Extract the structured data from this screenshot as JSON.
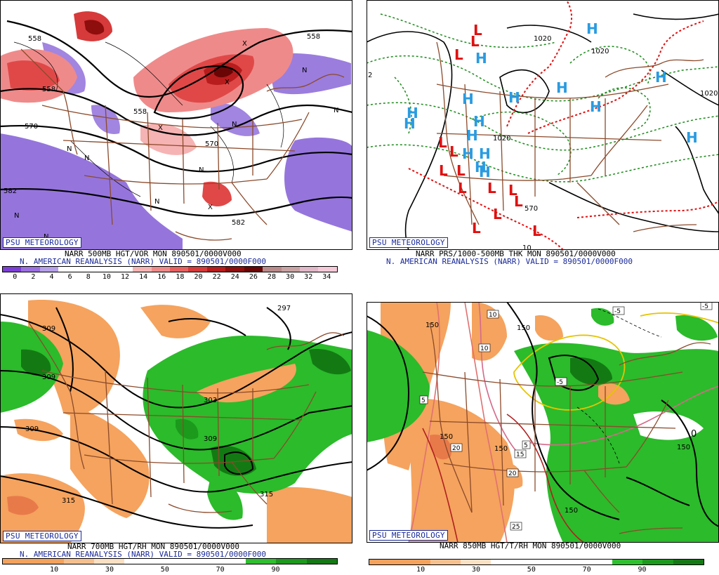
{
  "panels": [
    {
      "id": "p1",
      "logo": "PSU METEOROLOGY",
      "caption_line1": "NARR 500MB HGT/VOR MON 890501/0000V000",
      "caption_line2": "N. AMERICAN REANALYSIS (NARR) VALID = 890501/0000F000",
      "colorbar_labels": [
        "0",
        "2",
        "4",
        "6",
        "8",
        "10",
        "12",
        "14",
        "16",
        "18",
        "20",
        "22",
        "24",
        "26",
        "28",
        "30",
        "32",
        "34"
      ],
      "colorbar_colors": [
        "#7c3fd6",
        "#9a6fe0",
        "#b6a0e8",
        "#ffffff",
        "#ffffff",
        "#ffffff",
        "#ffffff",
        "#f6b3b3",
        "#ef8a8a",
        "#e66060",
        "#d63a3a",
        "#b81c1c",
        "#8e0d0d",
        "#6a0505",
        "#b98a8a",
        "#c9a3a3",
        "#e0b8c8",
        "#f5c9d8"
      ],
      "contour_labels": [
        "558",
        "558",
        "570",
        "570",
        "582",
        "582",
        "558",
        "558"
      ],
      "symbols": [
        "N",
        "N",
        "N",
        "N",
        "N",
        "N",
        "N",
        "N",
        "N",
        "X",
        "X",
        "X",
        "X"
      ]
    },
    {
      "id": "p2",
      "logo": "PSU METEOROLOGY",
      "caption_line1": "NARR PRS/1000-500MB THK MON 890501/0000V000",
      "caption_line2": "N. AMERICAN REANALYSIS (NARR) VALID = 890501/0000F000",
      "contour_labels": [
        "1020",
        "1020",
        "1020",
        "1020",
        "570",
        "2",
        "10"
      ],
      "highs": [
        "H",
        "H",
        "H",
        "H",
        "H",
        "H",
        "H",
        "H",
        "H",
        "H",
        "H",
        "H",
        "H",
        "H",
        "H",
        "H"
      ],
      "lows": [
        "L",
        "L",
        "L",
        "L",
        "L",
        "L",
        "L",
        "L",
        "L",
        "L",
        "L",
        "L",
        "L",
        "L"
      ]
    },
    {
      "id": "p3",
      "logo": "PSU METEOROLOGY",
      "caption_line1": "NARR 700MB HGT/RH MON 890501/0000V000",
      "caption_line2": "N. AMERICAN REANALYSIS (NARR) VALID = 890501/0000F000",
      "colorbar_labels": [
        "10",
        "30",
        "50",
        "70",
        "90"
      ],
      "colorbar_colors": [
        "#f4a25c",
        "#f4a25c",
        "#f6c08e",
        "#fbe0c4",
        "#ffffff",
        "#ffffff",
        "#ffffff",
        "#ffffff",
        "#2ec02e",
        "#1c9a1c",
        "#137a13"
      ],
      "contour_labels": [
        "309",
        "309",
        "309",
        "303",
        "309",
        "315",
        "315",
        "297"
      ]
    },
    {
      "id": "p4",
      "logo": "PSU METEOROLOGY",
      "caption_line1": "NARR 850MB HGT/T/RH MON 890501/0000V000",
      "caption_line2": "",
      "colorbar_labels": [
        "10",
        "30",
        "50",
        "70",
        "90"
      ],
      "colorbar_colors": [
        "#f4a25c",
        "#f4a25c",
        "#f6c08e",
        "#fbe0c4",
        "#ffffff",
        "#ffffff",
        "#ffffff",
        "#ffffff",
        "#2ec02e",
        "#1c9a1c",
        "#137a13"
      ],
      "contour_labels": [
        "150",
        "150",
        "150",
        "150",
        "150",
        "150",
        "-5",
        "-5",
        "-5",
        "5",
        "5",
        "10",
        "10",
        "15",
        "20",
        "20",
        "25",
        "0"
      ]
    }
  ],
  "colors": {
    "border_brown": "#8b4a2b",
    "vort_purple": "#8a66d8",
    "vort_red": "#e04848",
    "rh_green": "#2bbb2b",
    "rh_orange": "#f5a35e",
    "high_blue": "#2a9be0",
    "low_red": "#e01010",
    "logo_blue": "#1a2a9a"
  }
}
